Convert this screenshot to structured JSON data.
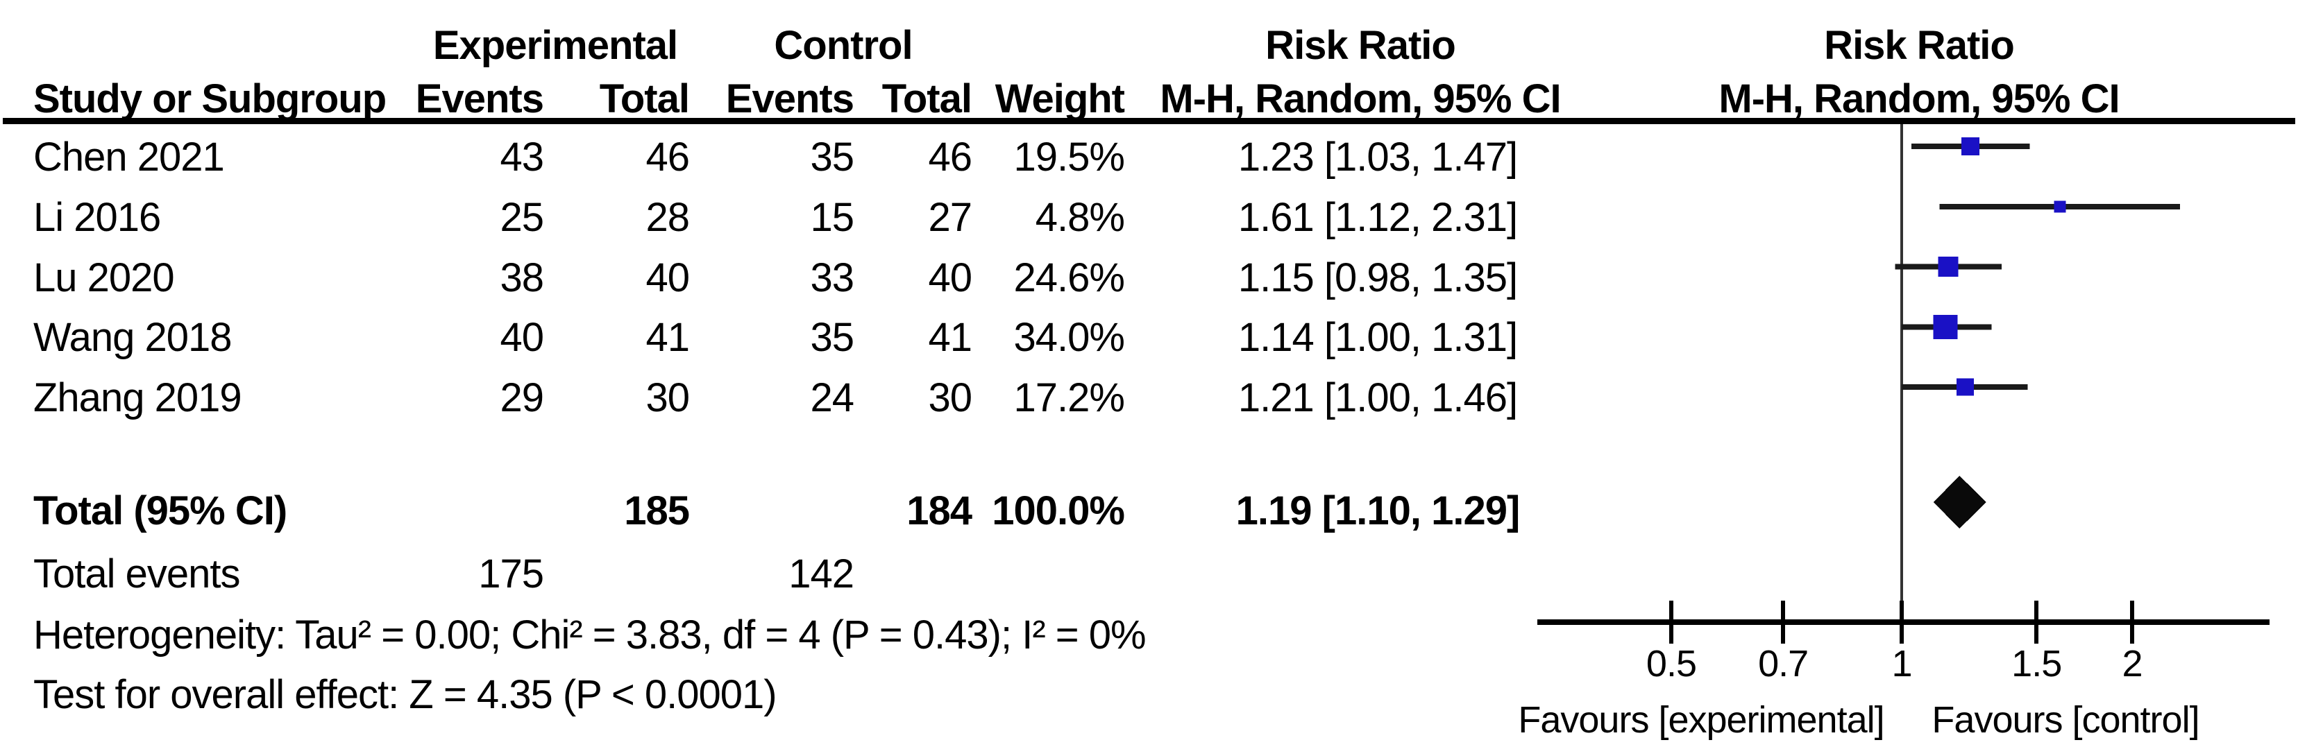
{
  "labels": {
    "study_header": "Study or Subgroup",
    "experimental": "Experimental",
    "control": "Control",
    "risk_ratio": "Risk Ratio",
    "events": "Events",
    "total": "Total",
    "weight": "Weight",
    "mh_random_ci": "M-H, Random, 95% CI",
    "total_label": "Total (95% CI)",
    "total_events_label": "Total events",
    "heterogeneity_prefix": "Heterogeneity: ",
    "overall_effect_prefix": "Test for overall effect: "
  },
  "plot": {
    "square_color": "#1A11C5",
    "ci_line_color": "#1a1a1a",
    "axis_color": "#000000",
    "null_line_color": "#333333",
    "diamond_color": "#0a0a0a",
    "tick_labels": [
      "0.5",
      "0.7",
      "1",
      "1.5",
      "2"
    ]
  },
  "chart_data": {
    "type": "forest",
    "effect_measure": "Risk Ratio",
    "method": "M-H, Random, 95% CI",
    "x_scale": "log",
    "x_ticks": [
      0.5,
      0.7,
      1,
      1.5,
      2
    ],
    "x_axis_labels": {
      "left": "Favours [experimental]",
      "right": "Favours [control]"
    },
    "studies": [
      {
        "name": "Chen 2021",
        "exp_events": 43,
        "exp_total": 46,
        "ctrl_events": 35,
        "ctrl_total": 46,
        "weight_pct": 19.5,
        "rr": 1.23,
        "ci": [
          1.03,
          1.47
        ]
      },
      {
        "name": "Li 2016",
        "exp_events": 25,
        "exp_total": 28,
        "ctrl_events": 15,
        "ctrl_total": 27,
        "weight_pct": 4.8,
        "rr": 1.61,
        "ci": [
          1.12,
          2.31
        ]
      },
      {
        "name": "Lu 2020",
        "exp_events": 38,
        "exp_total": 40,
        "ctrl_events": 33,
        "ctrl_total": 40,
        "weight_pct": 24.6,
        "rr": 1.15,
        "ci": [
          0.98,
          1.35
        ]
      },
      {
        "name": "Wang 2018",
        "exp_events": 40,
        "exp_total": 41,
        "ctrl_events": 35,
        "ctrl_total": 41,
        "weight_pct": 34.0,
        "rr": 1.14,
        "ci": [
          1.0,
          1.31
        ]
      },
      {
        "name": "Zhang 2019",
        "exp_events": 29,
        "exp_total": 30,
        "ctrl_events": 24,
        "ctrl_total": 30,
        "weight_pct": 17.2,
        "rr": 1.21,
        "ci": [
          1.0,
          1.46
        ]
      }
    ],
    "total": {
      "exp_total": 185,
      "ctrl_total": 184,
      "weight_pct": 100.0,
      "rr": 1.19,
      "ci": [
        1.1,
        1.29
      ],
      "exp_events": 175,
      "ctrl_events": 142
    },
    "heterogeneity": "Tau² = 0.00; Chi² = 3.83, df = 4 (P = 0.43); I² = 0%",
    "overall_effect": "Z = 4.35 (P < 0.0001)"
  }
}
